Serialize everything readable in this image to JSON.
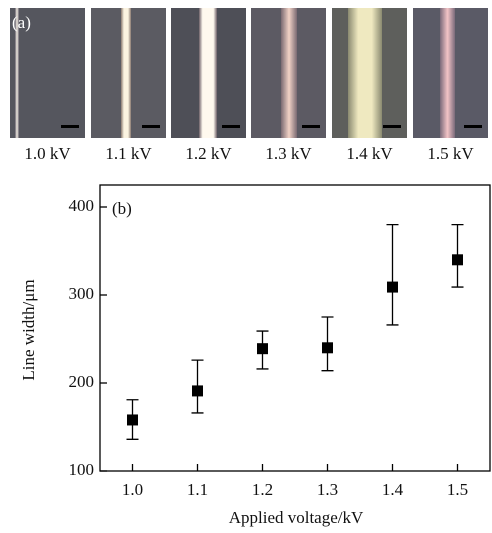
{
  "panel_a": {
    "label": "(a)",
    "captions": [
      "1.0 kV",
      "1.1 kV",
      "1.2 kV",
      "1.3 kV",
      "1.4 kV",
      "1.5 kV"
    ]
  },
  "chart_data": {
    "type": "scatter",
    "panel_label": "(b)",
    "x_label": "Applied voltage/kV",
    "y_label": "Line width/μm",
    "xlim": [
      0.95,
      1.55
    ],
    "ylim": [
      100,
      425
    ],
    "xticks": [
      {
        "value": 1,
        "label": "1.0"
      },
      1.1,
      1.2,
      1.3,
      1.4,
      {
        "value": 1.5,
        "label": "1.5"
      }
    ],
    "yticks": [
      100,
      200,
      300,
      400
    ],
    "series": [
      {
        "color": "#000000",
        "x": [
          1.0,
          1.1,
          1.2,
          1.3,
          1.4,
          1.5
        ],
        "values": [
          158,
          191,
          239,
          240,
          309,
          340
        ],
        "error_minus": [
          22,
          25,
          23,
          26,
          43,
          31
        ],
        "error_plus": [
          23,
          35,
          20,
          35,
          71,
          40
        ]
      }
    ]
  }
}
